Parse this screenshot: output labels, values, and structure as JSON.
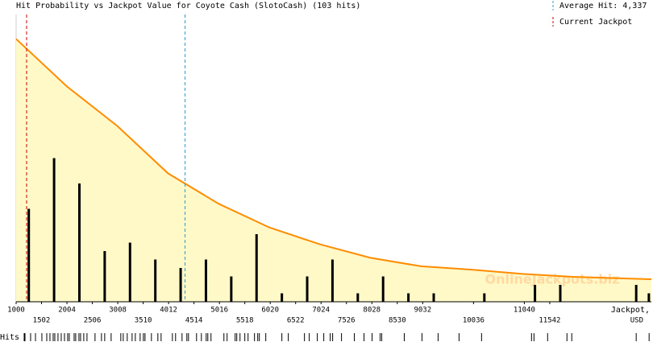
{
  "chart_data": {
    "type": "bar",
    "title": "Hit Probability vs Jackpot Value for Coyote Cash (SlotoCash) (103 hits)",
    "x_label": [
      "Jackpot,",
      "USD"
    ],
    "watermark": "OnlineJackpots.biz",
    "rug_label": "Hits",
    "xlim": [
      1000,
      13550
    ],
    "ylim": [
      0,
      34
    ],
    "xticks": [
      1000,
      1502,
      2004,
      2506,
      3008,
      3510,
      4012,
      4514,
      5016,
      5518,
      6020,
      6522,
      7024,
      7526,
      8028,
      8530,
      9032,
      10036,
      11040,
      11542
    ],
    "x": [
      1250,
      1750,
      2250,
      2750,
      3250,
      3750,
      4250,
      4750,
      5250,
      5750,
      6250,
      6750,
      7250,
      7750,
      8250,
      8750,
      9250,
      10250,
      11250,
      11750,
      13250,
      13500
    ],
    "values": [
      11,
      17,
      14,
      6,
      7,
      5,
      4,
      5,
      3,
      8,
      1,
      3,
      5,
      1,
      3,
      1,
      1,
      1,
      2,
      2,
      2,
      1
    ],
    "color": "#000000",
    "curve": {
      "color": "#ff8c00",
      "fill": "#fff9c8",
      "x": [
        1000,
        2000,
        3000,
        4000,
        5000,
        6000,
        7000,
        8000,
        9000,
        10000,
        11000,
        12000,
        13000,
        13550
      ],
      "values": [
        31.1,
        25.5,
        20.8,
        15.2,
        11.6,
        8.8,
        6.8,
        5.2,
        4.2,
        3.8,
        3.3,
        2.95,
        2.76,
        2.67
      ]
    },
    "average": {
      "value": 4337,
      "label": "Average Hit: 4,337",
      "color": "#3399cc"
    },
    "current": {
      "value": 1207,
      "label": "Current Jackpot",
      "color": "#cc0000"
    },
    "hits": [
      1159,
      1175,
      1286,
      1382,
      1509,
      1605,
      1668,
      1732,
      1764,
      1827,
      1891,
      1955,
      2018,
      2050,
      2146,
      2177,
      2241,
      2273,
      2336,
      2400,
      2559,
      2686,
      2750,
      2877,
      3068,
      3116,
      3195,
      3291,
      3355,
      3450,
      3514,
      3546,
      3673,
      3800,
      3864,
      4087,
      4150,
      4278,
      4373,
      4405,
      4564,
      4660,
      4755,
      4787,
      4850,
      5105,
      5168,
      5327,
      5359,
      5423,
      5518,
      5582,
      5709,
      5773,
      5805,
      5932,
      6250,
      6377,
      6696,
      6791,
      6950,
      7078,
      7205,
      7253,
      7428,
      7682,
      7873,
      8032,
      8191,
      8223,
      8668,
      9018,
      9336,
      9750,
      10195,
      11182,
      11230,
      11500,
      11882,
      11977,
      13250,
      13505
    ]
  }
}
